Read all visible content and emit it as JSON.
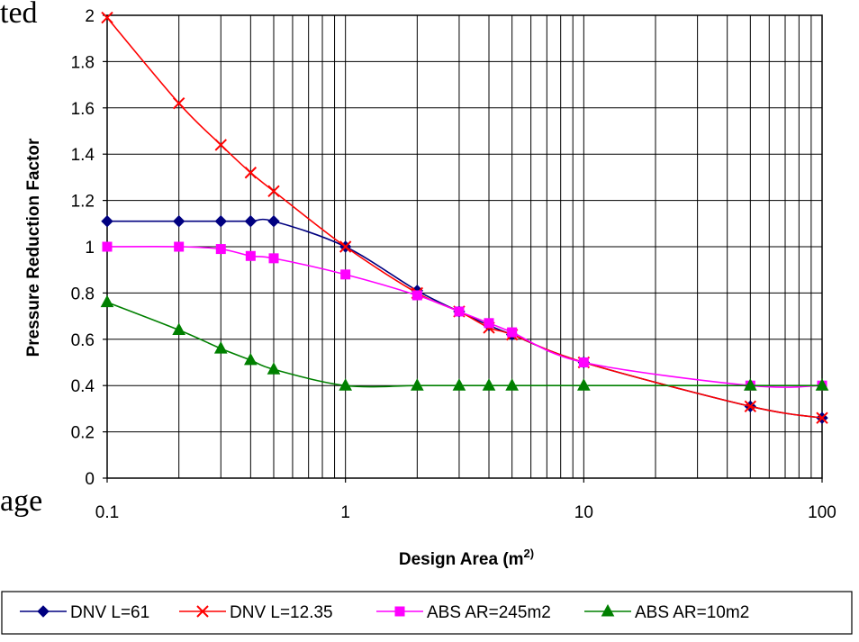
{
  "background_fragments": [
    "ted",
    "age"
  ],
  "chart_data": {
    "type": "line",
    "x_scale": "log",
    "xlim": [
      0.1,
      100
    ],
    "ylim": [
      0,
      2
    ],
    "xticks": [
      "0.1",
      "1",
      "10",
      "100"
    ],
    "yticks": [
      "0",
      "0.2",
      "0.4",
      "0.6",
      "0.8",
      "1",
      "1.2",
      "1.4",
      "1.6",
      "1.8",
      "2"
    ],
    "xlabel": "Design Area (m",
    "xlabel_sup": "2)",
    "ylabel": "Pressure Reduction Factor",
    "grid": true,
    "legend_position": "bottom",
    "series": [
      {
        "name": "DNV L=61",
        "color": "#000080",
        "marker": "diamond",
        "x": [
          0.1,
          0.2,
          0.3,
          0.4,
          0.5,
          1,
          2,
          3,
          4,
          5,
          10,
          50,
          100
        ],
        "y": [
          1.11,
          1.11,
          1.11,
          1.11,
          1.11,
          1.0,
          0.81,
          0.72,
          0.66,
          0.62,
          0.5,
          0.31,
          0.26
        ]
      },
      {
        "name": "DNV L=12.35",
        "color": "#ff0000",
        "marker": "x",
        "x": [
          0.1,
          0.2,
          0.3,
          0.4,
          0.5,
          1,
          2,
          3,
          4,
          5,
          10,
          50,
          100
        ],
        "y": [
          1.99,
          1.62,
          1.44,
          1.32,
          1.24,
          1.0,
          0.8,
          0.72,
          0.65,
          0.62,
          0.5,
          0.31,
          0.26
        ]
      },
      {
        "name": "ABS AR=245m2",
        "color": "#ff00ff",
        "marker": "square",
        "x": [
          0.1,
          0.2,
          0.3,
          0.4,
          0.5,
          1,
          2,
          3,
          4,
          5,
          10,
          50,
          100
        ],
        "y": [
          1.0,
          1.0,
          0.99,
          0.96,
          0.95,
          0.88,
          0.79,
          0.72,
          0.67,
          0.63,
          0.5,
          0.4,
          0.4
        ]
      },
      {
        "name": "ABS AR=10m2",
        "color": "#008000",
        "marker": "triangle",
        "x": [
          0.1,
          0.2,
          0.3,
          0.4,
          0.5,
          1,
          2,
          3,
          4,
          5,
          10,
          50,
          100
        ],
        "y": [
          0.76,
          0.64,
          0.56,
          0.51,
          0.47,
          0.4,
          0.4,
          0.4,
          0.4,
          0.4,
          0.4,
          0.4,
          0.4
        ]
      }
    ]
  }
}
